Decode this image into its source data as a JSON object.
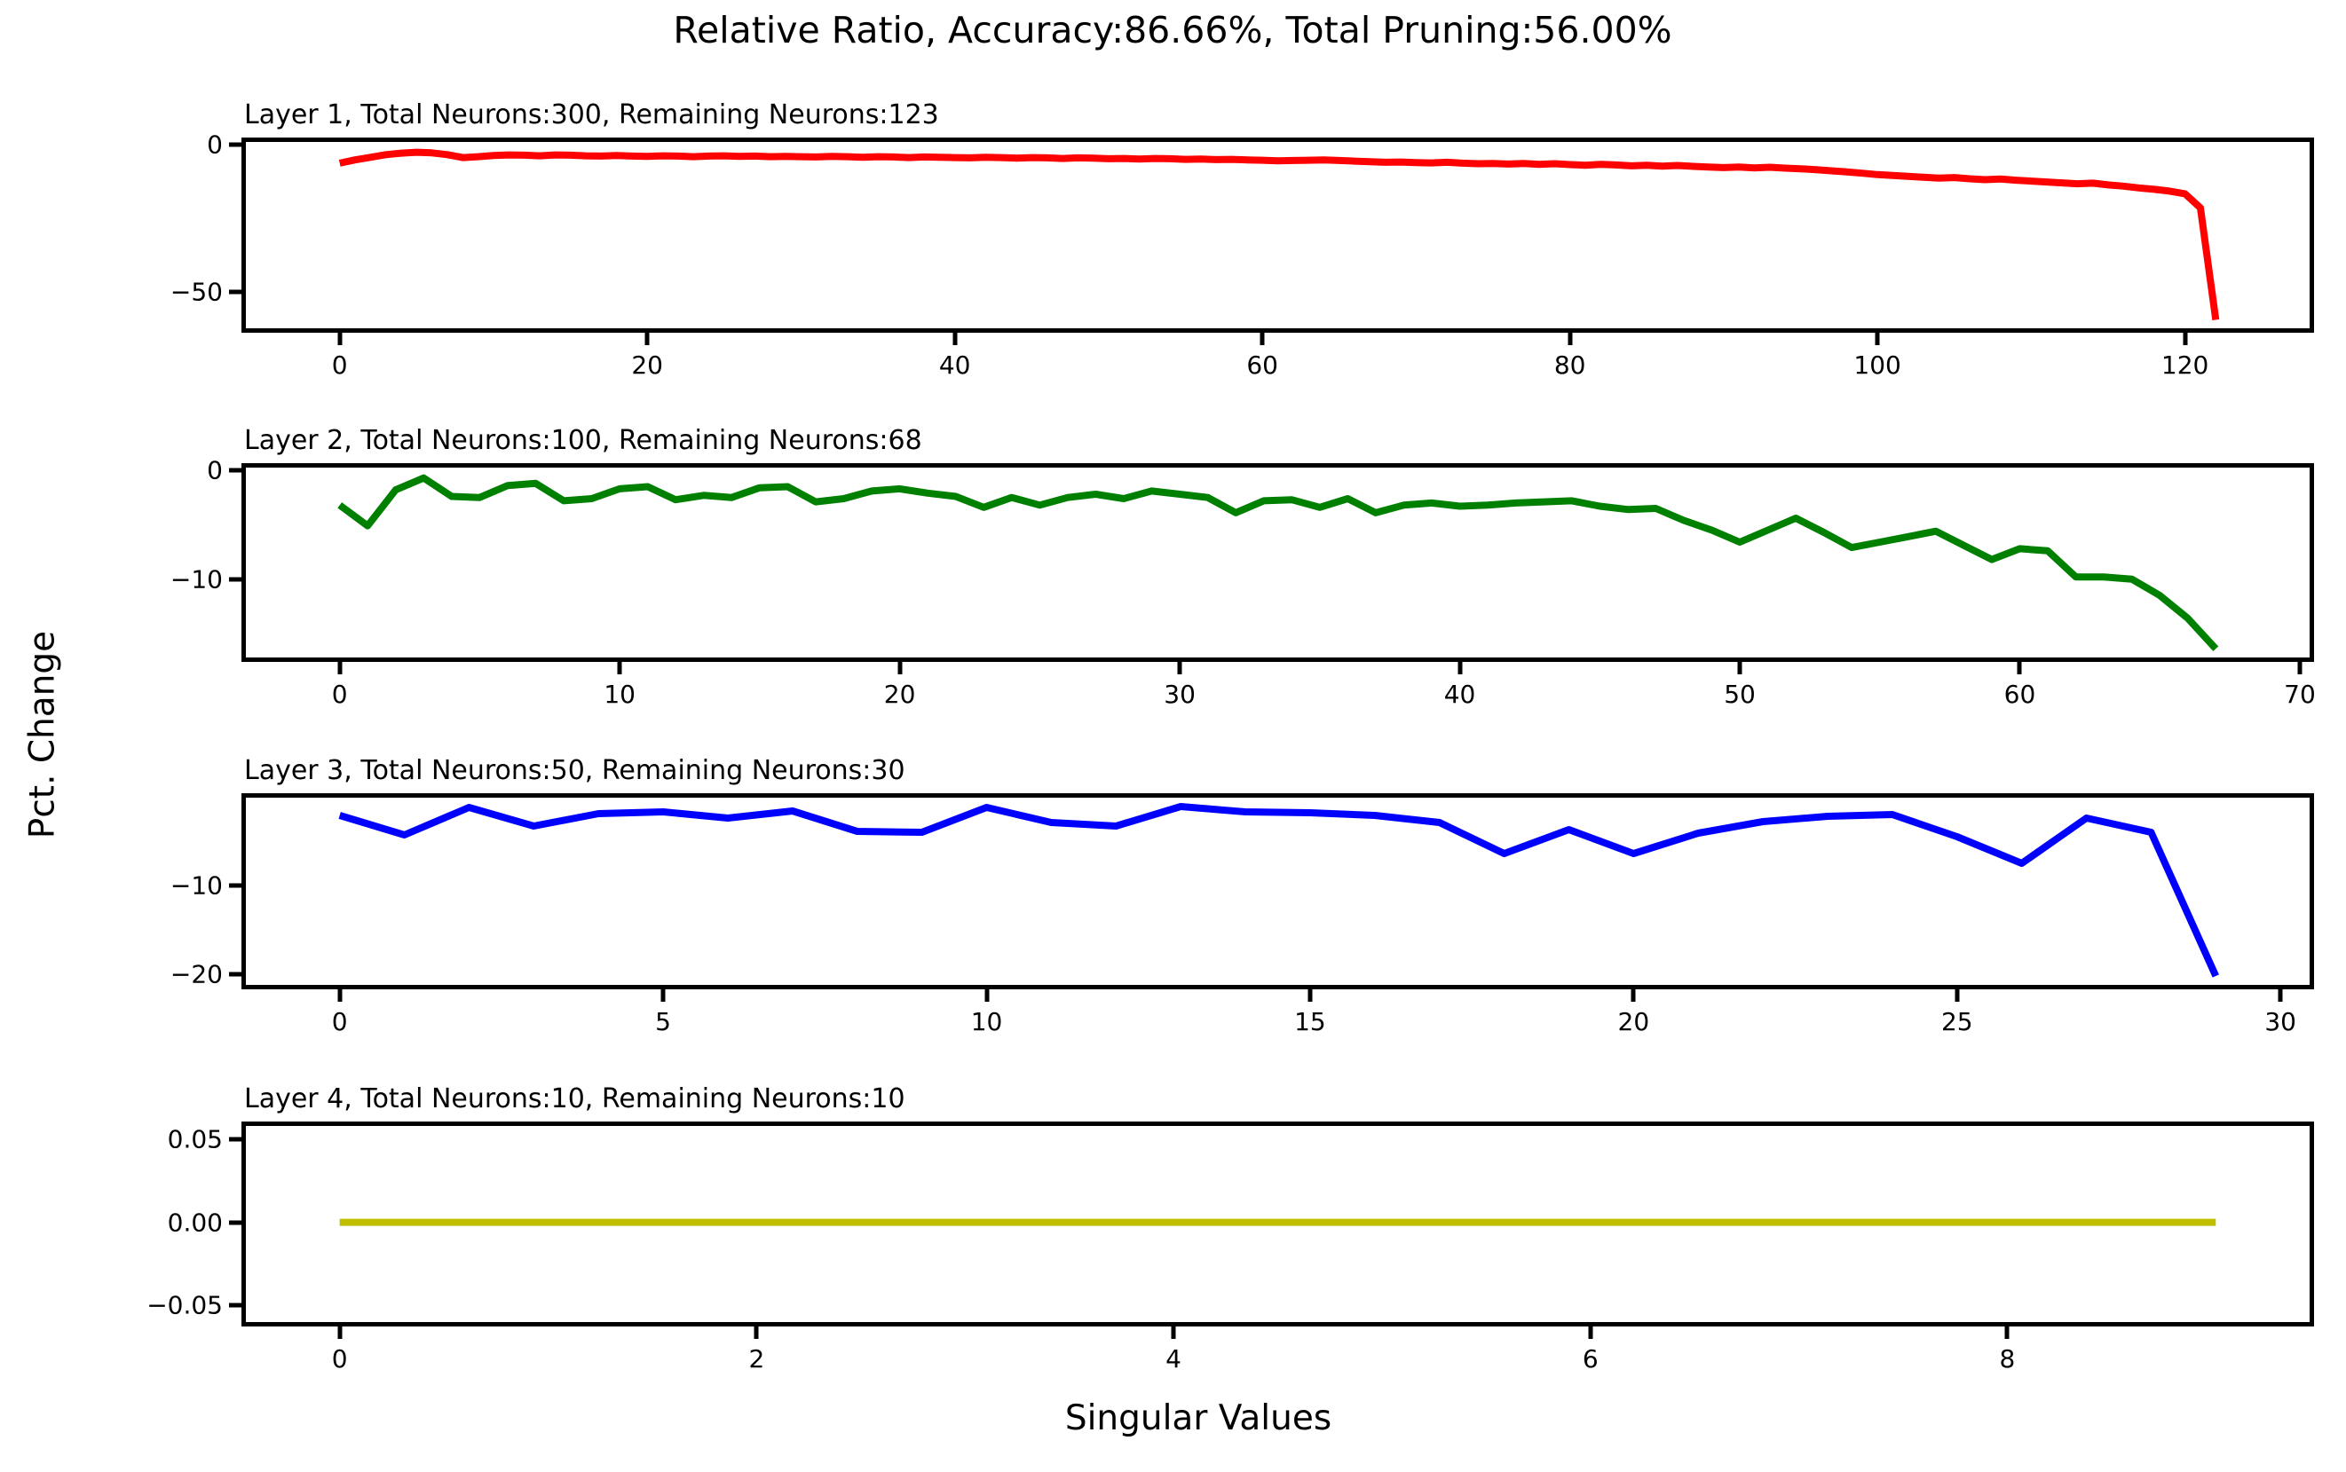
{
  "figure": {
    "title": "Relative Ratio, Accuracy:86.66%, Total Pruning:56.00%",
    "xlabel": "Singular Values",
    "ylabel": "Pct. Change",
    "background": "#ffffff",
    "spine_color": "#000000"
  },
  "chart_data": [
    {
      "type": "line",
      "title": "Layer 1, Total Neurons:300, Remaining Neurons:123",
      "legend": "none",
      "grid": false,
      "color": "#ff0000",
      "color_name": "red",
      "x_start": 0,
      "x_step": 1,
      "xlim": [
        -6.1,
        128.1
      ],
      "ylim": [
        -62.4,
        0.9
      ],
      "xtick_values": [
        0,
        20,
        40,
        60,
        80,
        100,
        120
      ],
      "xtick_labels": [
        "0",
        "20",
        "40",
        "60",
        "80",
        "100",
        "120"
      ],
      "ytick_values": [
        0,
        -50
      ],
      "ytick_labels": [
        "0",
        "−50"
      ],
      "values": [
        -6.3,
        -5.2,
        -4.3,
        -3.4,
        -2.9,
        -2.6,
        -2.8,
        -3.4,
        -4.4,
        -4.1,
        -3.7,
        -3.5,
        -3.6,
        -3.8,
        -3.5,
        -3.6,
        -3.8,
        -3.9,
        -3.7,
        -3.9,
        -4.0,
        -3.8,
        -3.9,
        -4.1,
        -3.9,
        -3.8,
        -4.0,
        -3.9,
        -4.1,
        -4.0,
        -4.1,
        -4.2,
        -4.0,
        -4.1,
        -4.3,
        -4.1,
        -4.2,
        -4.4,
        -4.2,
        -4.3,
        -4.4,
        -4.5,
        -4.3,
        -4.4,
        -4.6,
        -4.4,
        -4.5,
        -4.7,
        -4.5,
        -4.6,
        -4.8,
        -4.7,
        -4.9,
        -4.7,
        -4.8,
        -5.0,
        -4.9,
        -5.1,
        -5.0,
        -5.2,
        -5.3,
        -5.5,
        -5.4,
        -5.3,
        -5.2,
        -5.4,
        -5.6,
        -5.8,
        -6.0,
        -5.9,
        -6.1,
        -6.2,
        -6.0,
        -6.3,
        -6.5,
        -6.4,
        -6.6,
        -6.4,
        -6.7,
        -6.5,
        -6.8,
        -7.0,
        -6.7,
        -6.9,
        -7.2,
        -7.0,
        -7.3,
        -7.1,
        -7.4,
        -7.6,
        -7.8,
        -7.6,
        -7.9,
        -7.7,
        -8.0,
        -8.2,
        -8.5,
        -8.9,
        -9.3,
        -9.7,
        -10.2,
        -10.5,
        -10.8,
        -11.1,
        -11.4,
        -11.2,
        -11.6,
        -11.9,
        -11.7,
        -12.1,
        -12.4,
        -12.7,
        -13.0,
        -13.3,
        -13.1,
        -13.7,
        -14.1,
        -14.7,
        -15.2,
        -15.8,
        -16.7,
        -21.5,
        -59.5
      ]
    },
    {
      "type": "line",
      "title": "Layer 2, Total Neurons:100, Remaining Neurons:68",
      "legend": "none",
      "grid": false,
      "color": "#008000",
      "color_name": "green",
      "x_start": 0,
      "x_step": 1,
      "xlim": [
        -3.35,
        70.35
      ],
      "ylim": [
        -17.2,
        0.25
      ],
      "xtick_values": [
        0,
        10,
        20,
        30,
        40,
        50,
        60,
        70
      ],
      "xtick_labels": [
        "0",
        "10",
        "20",
        "30",
        "40",
        "50",
        "60",
        "70"
      ],
      "ytick_values": [
        0,
        -10
      ],
      "ytick_labels": [
        "0",
        "−10"
      ],
      "values": [
        -3.2,
        -5.1,
        -1.8,
        -0.7,
        -2.4,
        -2.5,
        -1.4,
        -1.2,
        -2.8,
        -2.6,
        -1.7,
        -1.5,
        -2.7,
        -2.3,
        -2.5,
        -1.6,
        -1.5,
        -2.9,
        -2.6,
        -1.9,
        -1.7,
        -2.1,
        -2.4,
        -3.4,
        -2.5,
        -3.2,
        -2.5,
        -2.2,
        -2.6,
        -1.9,
        -2.2,
        -2.5,
        -3.9,
        -2.8,
        -2.7,
        -3.4,
        -2.6,
        -3.9,
        -3.2,
        -3.0,
        -3.3,
        -3.2,
        -3.0,
        -2.9,
        -2.8,
        -3.3,
        -3.6,
        -3.5,
        -4.6,
        -5.5,
        -6.6,
        -5.5,
        -4.4,
        -5.7,
        -7.1,
        -6.6,
        -6.1,
        -5.6,
        -6.9,
        -8.2,
        -7.2,
        -7.4,
        -9.8,
        -9.8,
        -10.0,
        -11.5,
        -13.6,
        -16.4
      ]
    },
    {
      "type": "line",
      "title": "Layer 3, Total Neurons:50, Remaining Neurons:30",
      "legend": "none",
      "grid": false,
      "color": "#0000ff",
      "color_name": "blue",
      "x_start": 0,
      "x_step": 1,
      "xlim": [
        -1.45,
        30.45
      ],
      "ylim": [
        -21.2,
        -0.1
      ],
      "xtick_values": [
        0,
        5,
        10,
        15,
        20,
        25,
        30
      ],
      "xtick_labels": [
        "0",
        "5",
        "10",
        "15",
        "20",
        "25",
        "30"
      ],
      "ytick_values": [
        -10,
        -20
      ],
      "ytick_labels": [
        "−10",
        "−20"
      ],
      "values": [
        -2.1,
        -4.3,
        -1.2,
        -3.3,
        -1.9,
        -1.7,
        -2.4,
        -1.6,
        -3.9,
        -4.0,
        -1.2,
        -2.9,
        -3.3,
        -1.1,
        -1.7,
        -1.8,
        -2.1,
        -2.9,
        -6.4,
        -3.7,
        -6.4,
        -4.1,
        -2.8,
        -2.2,
        -2.0,
        -4.5,
        -7.5,
        -2.4,
        -4.0,
        -20.2
      ]
    },
    {
      "type": "line",
      "title": "Layer 4, Total Neurons:10, Remaining Neurons:10",
      "legend": "none",
      "grid": false,
      "color": "#bfbf00",
      "color_name": "olive-yellow",
      "x_start": 0,
      "x_step": 1,
      "xlim": [
        -0.45,
        9.45
      ],
      "ylim": [
        -0.06,
        0.058
      ],
      "xtick_values": [
        0,
        2,
        4,
        6,
        8
      ],
      "xtick_labels": [
        "0",
        "2",
        "4",
        "6",
        "8"
      ],
      "ytick_values": [
        0.05,
        0.0,
        -0.05
      ],
      "ytick_labels": [
        "0.05",
        "0.00",
        "−0.05"
      ],
      "values": [
        0.0,
        0.0,
        0.0,
        0.0,
        0.0,
        0.0,
        0.0,
        0.0,
        0.0,
        0.0
      ]
    }
  ]
}
